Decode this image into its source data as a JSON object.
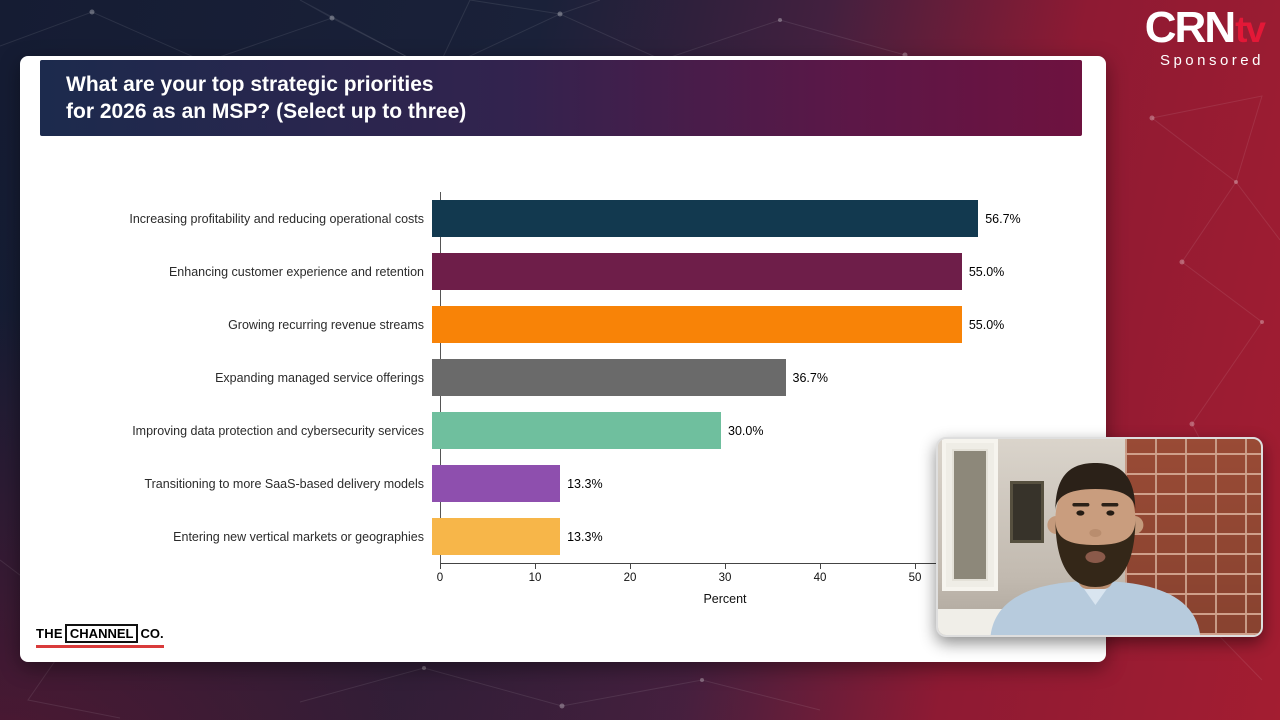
{
  "header": {
    "question_line1": "What are your top strategic priorities",
    "question_line2": "for 2026 as an MSP? (Select up to three)"
  },
  "branding": {
    "crn": "CRN",
    "tv": "tv",
    "sponsored": "Sponsored",
    "channel": {
      "the": "THE",
      "channel": "CHANNEL",
      "co": "CO."
    }
  },
  "chart_data": {
    "type": "bar",
    "orientation": "horizontal",
    "title": "What are your top strategic priorities for 2026 as an MSP? (Select up to three)",
    "categories": [
      "Increasing profitability and reducing operational costs",
      "Enhancing customer experience and retention",
      "Growing recurring revenue streams",
      "Expanding managed service offerings",
      "Improving data protection and cybersecurity services",
      "Transitioning to more SaaS-based delivery models",
      "Entering new vertical markets or geographies"
    ],
    "values": [
      56.7,
      55.0,
      55.0,
      36.7,
      30.0,
      13.3,
      13.3
    ],
    "value_labels": [
      "56.7%",
      "55.0%",
      "55.0%",
      "36.7%",
      "30.0%",
      "13.3%",
      "13.3%"
    ],
    "bar_colors": [
      "#12394f",
      "#6e1e49",
      "#f88307",
      "#6a6a6a",
      "#6fbf9e",
      "#8e4fae",
      "#f7b649"
    ],
    "xlabel": "Percent",
    "xticks": [
      0,
      10,
      20,
      30,
      40,
      50
    ],
    "xlim": [
      0,
      60
    ],
    "grid": false,
    "legend": false
  }
}
